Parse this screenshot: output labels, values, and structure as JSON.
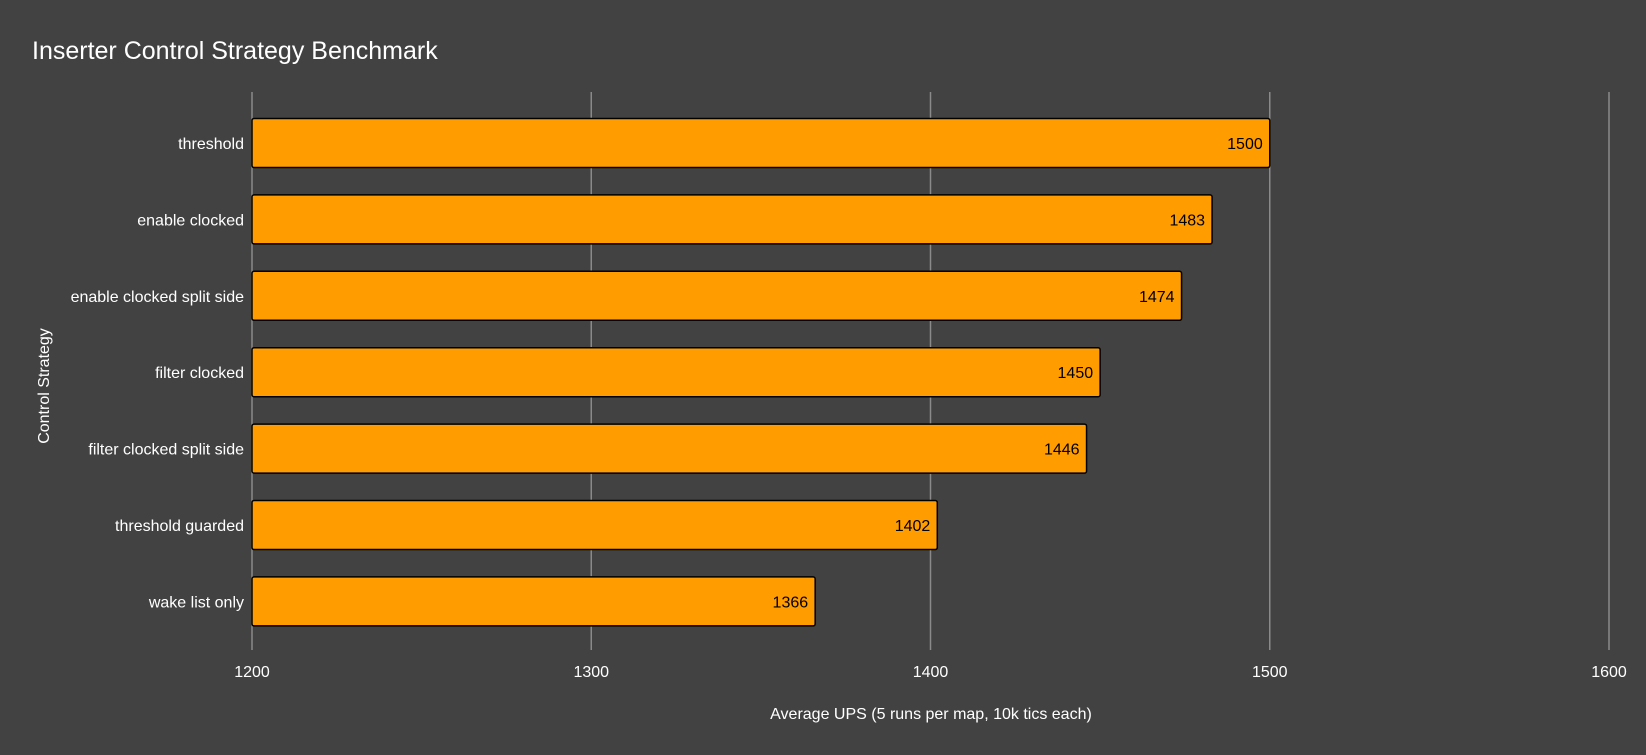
{
  "chart_data": {
    "type": "bar",
    "orientation": "horizontal",
    "title": "Inserter Control Strategy Benchmark",
    "xlabel": "Average UPS (5 runs per map, 10k tics each)",
    "ylabel": "Control Strategy",
    "categories": [
      "threshold",
      "enable clocked",
      "enable clocked split side",
      "filter clocked",
      "filter clocked split side",
      "threshold guarded",
      "wake list only"
    ],
    "values": [
      1500,
      1483,
      1474,
      1450,
      1446,
      1402,
      1366
    ],
    "xlim": [
      1200,
      1600
    ],
    "xticks": [
      1200,
      1300,
      1400,
      1500,
      1600
    ],
    "grid": true,
    "legend": "none",
    "colors": {
      "background": "#424242",
      "bar": "#ff9c00",
      "bar_stroke": "#000000",
      "gridline": "#8a8a8a",
      "text": "#ffffff",
      "value_text": "#000000"
    }
  }
}
